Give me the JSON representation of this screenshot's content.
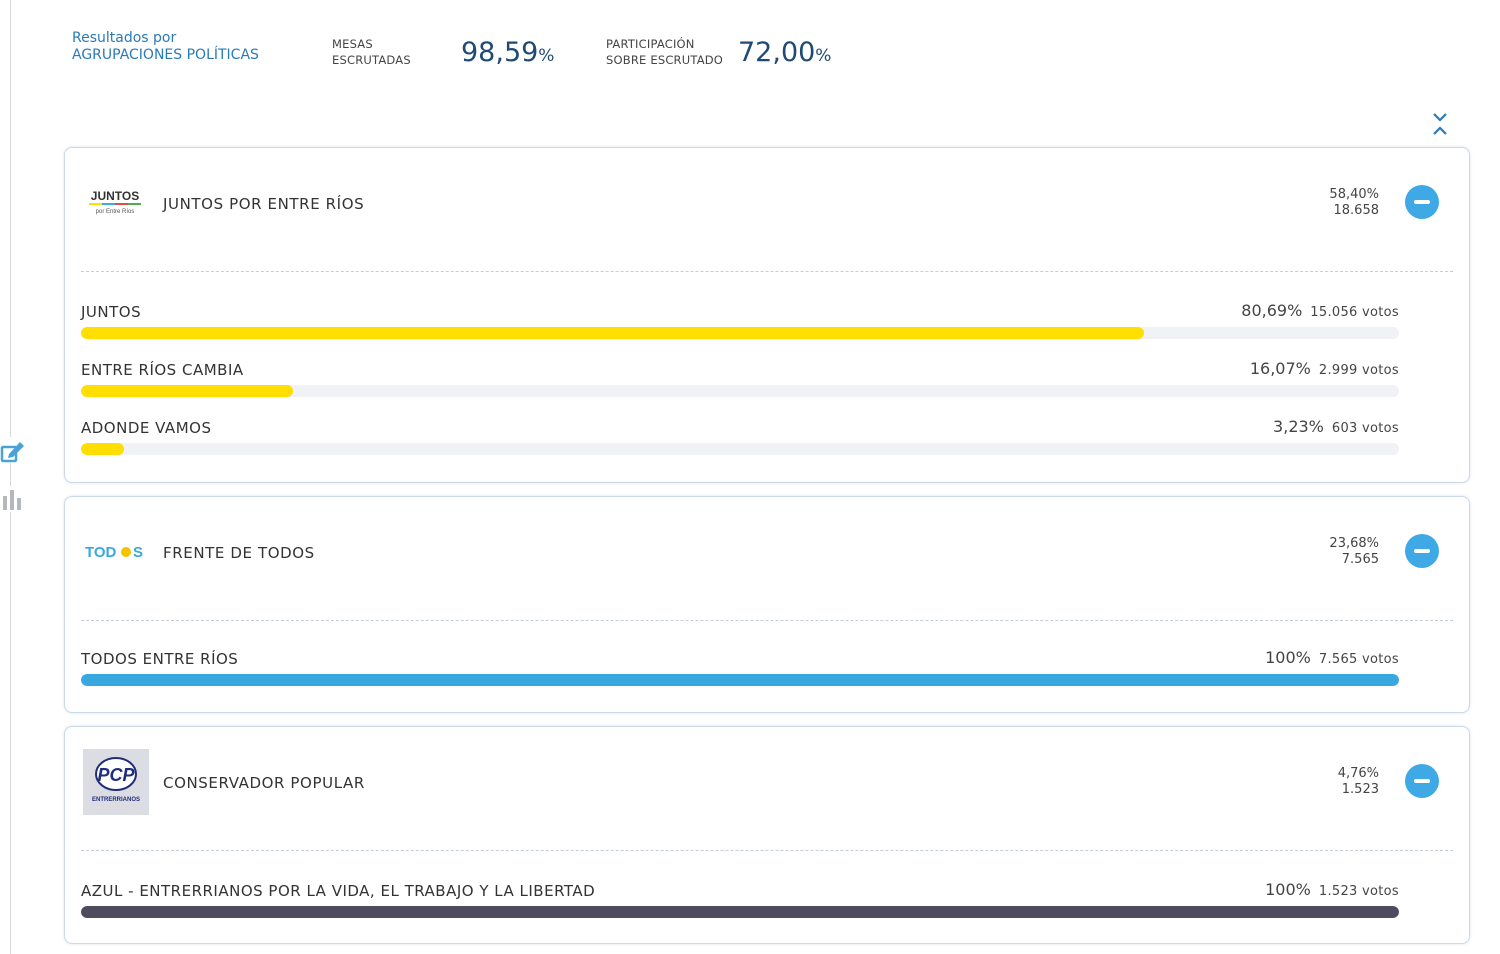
{
  "header": {
    "title_line1": "Resultados por",
    "title_line2": "AGRUPACIONES POLÍTICAS",
    "mesas_label_1": "MESAS",
    "mesas_label_2": "ESCRUTADAS",
    "mesas_value": "98,59",
    "mesas_unit": "%",
    "participacion_label_1": "PARTICIPACIÓN",
    "participacion_label_2": "SOBRE ESCRUTADO",
    "participacion_value": "72,00",
    "participacion_unit": "%"
  },
  "icons": {
    "edit": "edit-icon",
    "stats": "bar-chart-icon",
    "collapse_all": "collapse-all-icon",
    "toggle": "minus-circle-icon"
  },
  "colors": {
    "accent_blue": "#3fa9e6",
    "juntos_yellow": "#ffde00",
    "todos_blue": "#3aa8e0",
    "pcp_dark": "#4f4b5e",
    "header_value": "#1f4a74"
  },
  "cards": [
    {
      "logo_text_1": "JUNTOS",
      "logo_text_2": "por Entre Ríos",
      "name": "JUNTOS POR ENTRE RÍOS",
      "pct": "58,40%",
      "votes": "18.658",
      "subs": [
        {
          "name": "JUNTOS",
          "pct": "80,69%",
          "votes": "15.056 votos",
          "fraction": 0.8069
        },
        {
          "name": "ENTRE RÍOS CAMBIA",
          "pct": "16,07%",
          "votes": "2.999 votos",
          "fraction": 0.1607
        },
        {
          "name": "ADONDE VAMOS",
          "pct": "3,23%",
          "votes": "603 votos",
          "fraction": 0.0323
        }
      ]
    },
    {
      "logo_text_1": "TOD",
      "logo_text_2": "S",
      "name": "FRENTE DE TODOS",
      "pct": "23,68%",
      "votes": "7.565",
      "subs": [
        {
          "name": "TODOS ENTRE RÍOS",
          "pct": "100%",
          "votes": "7.565 votos",
          "fraction": 1.0
        }
      ]
    },
    {
      "logo_text_1": "PCP",
      "logo_text_2": "ENTRERRIANOS",
      "name": "CONSERVADOR POPULAR",
      "pct": "4,76%",
      "votes": "1.523",
      "subs": [
        {
          "name": "AZUL - ENTRERRIANOS POR LA VIDA, EL TRABAJO Y LA LIBERTAD",
          "pct": "100%",
          "votes": "1.523 votos",
          "fraction": 1.0
        }
      ]
    }
  ]
}
